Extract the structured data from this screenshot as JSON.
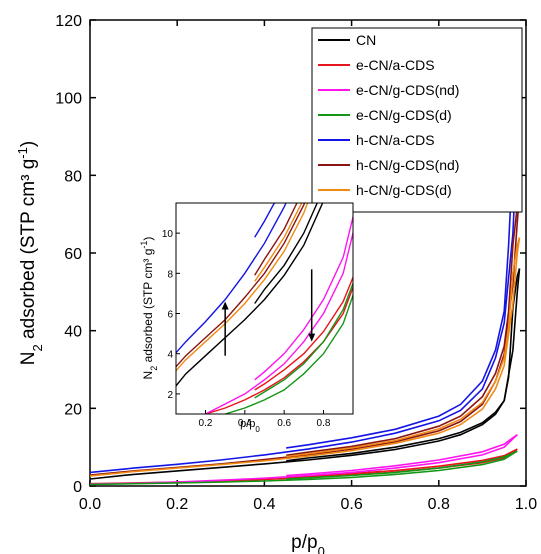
{
  "chart_data": {
    "type": "line",
    "title": "",
    "xlabel": "p/p",
    "xlabel_sub": "0",
    "ylabel_main": "N",
    "ylabel_sub": "2",
    "ylabel_rest": " adsorbed (STP cm³ g",
    "ylabel_sup": "-1",
    "ylabel_end": ")",
    "xlim": [
      0.0,
      1.0
    ],
    "ylim": [
      0,
      120
    ],
    "xticks": [
      "0.0",
      "0.2",
      "0.4",
      "0.6",
      "0.8",
      "1.0"
    ],
    "yticks": [
      "0",
      "20",
      "40",
      "60",
      "80",
      "100",
      "120"
    ],
    "legend_position": "top-right",
    "series": [
      {
        "name": "CN",
        "color": "#000000",
        "adsorption": [
          [
            0.0,
            1.8
          ],
          [
            0.1,
            3.0
          ],
          [
            0.2,
            3.9
          ],
          [
            0.3,
            4.8
          ],
          [
            0.4,
            5.7
          ],
          [
            0.5,
            6.7
          ],
          [
            0.6,
            7.9
          ],
          [
            0.7,
            9.4
          ],
          [
            0.8,
            11.6
          ],
          [
            0.85,
            13.2
          ],
          [
            0.9,
            15.8
          ],
          [
            0.93,
            18.5
          ],
          [
            0.95,
            22
          ],
          [
            0.97,
            35
          ],
          [
            0.98,
            50
          ],
          [
            0.985,
            56
          ]
        ],
        "desorption": [
          [
            0.985,
            56
          ],
          [
            0.98,
            54
          ],
          [
            0.97,
            46
          ],
          [
            0.96,
            28
          ],
          [
            0.95,
            22
          ],
          [
            0.93,
            19
          ],
          [
            0.9,
            16.3
          ],
          [
            0.85,
            13.8
          ],
          [
            0.8,
            12.2
          ],
          [
            0.7,
            10.0
          ],
          [
            0.6,
            8.4
          ],
          [
            0.5,
            7.2
          ],
          [
            0.45,
            6.5
          ]
        ]
      },
      {
        "name": "e-CN/a-CDS",
        "color": "#e8141c",
        "adsorption": [
          [
            0.0,
            0.6
          ],
          [
            0.1,
            0.8
          ],
          [
            0.2,
            1.0
          ],
          [
            0.3,
            1.3
          ],
          [
            0.4,
            1.7
          ],
          [
            0.5,
            2.2
          ],
          [
            0.6,
            2.8
          ],
          [
            0.7,
            3.6
          ],
          [
            0.8,
            4.6
          ],
          [
            0.9,
            6.0
          ],
          [
            0.95,
            7.3
          ],
          [
            0.98,
            9.5
          ]
        ],
        "desorption": [
          [
            0.98,
            9.5
          ],
          [
            0.95,
            7.8
          ],
          [
            0.9,
            6.6
          ],
          [
            0.8,
            5.1
          ],
          [
            0.7,
            4.0
          ],
          [
            0.6,
            3.2
          ],
          [
            0.5,
            2.5
          ],
          [
            0.45,
            2.2
          ]
        ]
      },
      {
        "name": "e-CN/g-CDS(nd)",
        "color": "#ff14f0",
        "adsorption": [
          [
            0.0,
            0.5
          ],
          [
            0.1,
            0.7
          ],
          [
            0.2,
            1.0
          ],
          [
            0.3,
            1.5
          ],
          [
            0.4,
            2.0
          ],
          [
            0.5,
            2.7
          ],
          [
            0.6,
            3.5
          ],
          [
            0.7,
            4.6
          ],
          [
            0.8,
            6.0
          ],
          [
            0.9,
            8.0
          ],
          [
            0.95,
            10.0
          ],
          [
            0.98,
            13.2
          ]
        ],
        "desorption": [
          [
            0.98,
            13.2
          ],
          [
            0.95,
            10.8
          ],
          [
            0.9,
            8.8
          ],
          [
            0.8,
            6.7
          ],
          [
            0.7,
            5.2
          ],
          [
            0.6,
            4.0
          ],
          [
            0.5,
            3.1
          ],
          [
            0.45,
            2.7
          ]
        ]
      },
      {
        "name": "e-CN/g-CDS(d)",
        "color": "#149614",
        "adsorption": [
          [
            0.0,
            0.4
          ],
          [
            0.1,
            0.6
          ],
          [
            0.2,
            0.8
          ],
          [
            0.3,
            1.0
          ],
          [
            0.4,
            1.3
          ],
          [
            0.5,
            1.7
          ],
          [
            0.6,
            2.2
          ],
          [
            0.7,
            3.0
          ],
          [
            0.8,
            4.0
          ],
          [
            0.9,
            5.5
          ],
          [
            0.95,
            6.9
          ],
          [
            0.98,
            9.0
          ]
        ],
        "desorption": [
          [
            0.98,
            9.0
          ],
          [
            0.95,
            7.5
          ],
          [
            0.9,
            6.2
          ],
          [
            0.8,
            4.6
          ],
          [
            0.7,
            3.5
          ],
          [
            0.6,
            2.7
          ],
          [
            0.5,
            2.1
          ],
          [
            0.45,
            1.8
          ]
        ]
      },
      {
        "name": "h-CN/a-CDS",
        "color": "#1414e6",
        "adsorption": [
          [
            0.0,
            3.5
          ],
          [
            0.1,
            4.6
          ],
          [
            0.2,
            5.6
          ],
          [
            0.3,
            6.7
          ],
          [
            0.4,
            8.0
          ],
          [
            0.5,
            9.5
          ],
          [
            0.6,
            11.3
          ],
          [
            0.7,
            13.6
          ],
          [
            0.8,
            16.8
          ],
          [
            0.85,
            19.5
          ],
          [
            0.9,
            25
          ],
          [
            0.93,
            33
          ],
          [
            0.95,
            42
          ],
          [
            0.97,
            65
          ],
          [
            0.98,
            90
          ],
          [
            0.985,
            101.5
          ]
        ],
        "desorption": [
          [
            0.985,
            101.5
          ],
          [
            0.98,
            96
          ],
          [
            0.97,
            85
          ],
          [
            0.96,
            62
          ],
          [
            0.95,
            45
          ],
          [
            0.93,
            35
          ],
          [
            0.9,
            27
          ],
          [
            0.85,
            21
          ],
          [
            0.8,
            18
          ],
          [
            0.7,
            14.6
          ],
          [
            0.6,
            12.4
          ],
          [
            0.5,
            10.6
          ],
          [
            0.45,
            9.8
          ]
        ]
      },
      {
        "name": "h-CN/g-CDS(nd)",
        "color": "#8a1414",
        "adsorption": [
          [
            0.0,
            2.8
          ],
          [
            0.1,
            3.9
          ],
          [
            0.2,
            4.8
          ],
          [
            0.3,
            5.7
          ],
          [
            0.4,
            6.8
          ],
          [
            0.5,
            8.0
          ],
          [
            0.6,
            9.5
          ],
          [
            0.7,
            11.4
          ],
          [
            0.8,
            14.2
          ],
          [
            0.85,
            16.6
          ],
          [
            0.9,
            21
          ],
          [
            0.93,
            27
          ],
          [
            0.95,
            34
          ],
          [
            0.97,
            52
          ],
          [
            0.98,
            68
          ],
          [
            0.985,
            75
          ]
        ],
        "desorption": [
          [
            0.985,
            75
          ],
          [
            0.98,
            72
          ],
          [
            0.97,
            62
          ],
          [
            0.96,
            45
          ],
          [
            0.95,
            36
          ],
          [
            0.93,
            29
          ],
          [
            0.9,
            23
          ],
          [
            0.85,
            18
          ],
          [
            0.8,
            15.4
          ],
          [
            0.7,
            12.2
          ],
          [
            0.6,
            10.2
          ],
          [
            0.5,
            8.7
          ],
          [
            0.45,
            7.9
          ]
        ]
      },
      {
        "name": "h-CN/g-CDS(d)",
        "color": "#f08a14",
        "adsorption": [
          [
            0.0,
            2.6
          ],
          [
            0.1,
            3.7
          ],
          [
            0.2,
            4.6
          ],
          [
            0.3,
            5.5
          ],
          [
            0.4,
            6.5
          ],
          [
            0.5,
            7.7
          ],
          [
            0.6,
            9.1
          ],
          [
            0.7,
            11.0
          ],
          [
            0.8,
            13.6
          ],
          [
            0.85,
            15.8
          ],
          [
            0.9,
            19.8
          ],
          [
            0.93,
            25
          ],
          [
            0.95,
            31
          ],
          [
            0.97,
            47
          ],
          [
            0.98,
            60
          ],
          [
            0.985,
            64
          ]
        ],
        "desorption": [
          [
            0.985,
            64
          ],
          [
            0.98,
            62
          ],
          [
            0.97,
            55
          ],
          [
            0.96,
            41
          ],
          [
            0.95,
            33
          ],
          [
            0.93,
            27
          ],
          [
            0.9,
            21.5
          ],
          [
            0.85,
            17.2
          ],
          [
            0.8,
            14.7
          ],
          [
            0.7,
            11.7
          ],
          [
            0.6,
            9.8
          ],
          [
            0.5,
            8.3
          ],
          [
            0.45,
            7.6
          ]
        ]
      }
    ],
    "inset": {
      "xlim": [
        0.05,
        0.95
      ],
      "ylim": [
        1,
        11.5
      ],
      "xticks": [
        "0.2",
        "0.4",
        "0.6",
        "0.8"
      ],
      "yticks": [
        "2",
        "4",
        "6",
        "8",
        "10"
      ],
      "xlabel": "p/p",
      "xlabel_sub": "0",
      "ylabel_main": "N",
      "ylabel_sub": "2",
      "ylabel_rest": " adsorbed (STP cm³ g",
      "ylabel_sup": "-1",
      "ylabel_end": ")",
      "annotations": [
        {
          "type": "arrow-up",
          "x": 0.3,
          "y_from": 3.9,
          "y_to": 6.6
        },
        {
          "type": "arrow-down",
          "x": 0.74,
          "y_from": 8.2,
          "y_to": 4.6
        }
      ]
    }
  }
}
